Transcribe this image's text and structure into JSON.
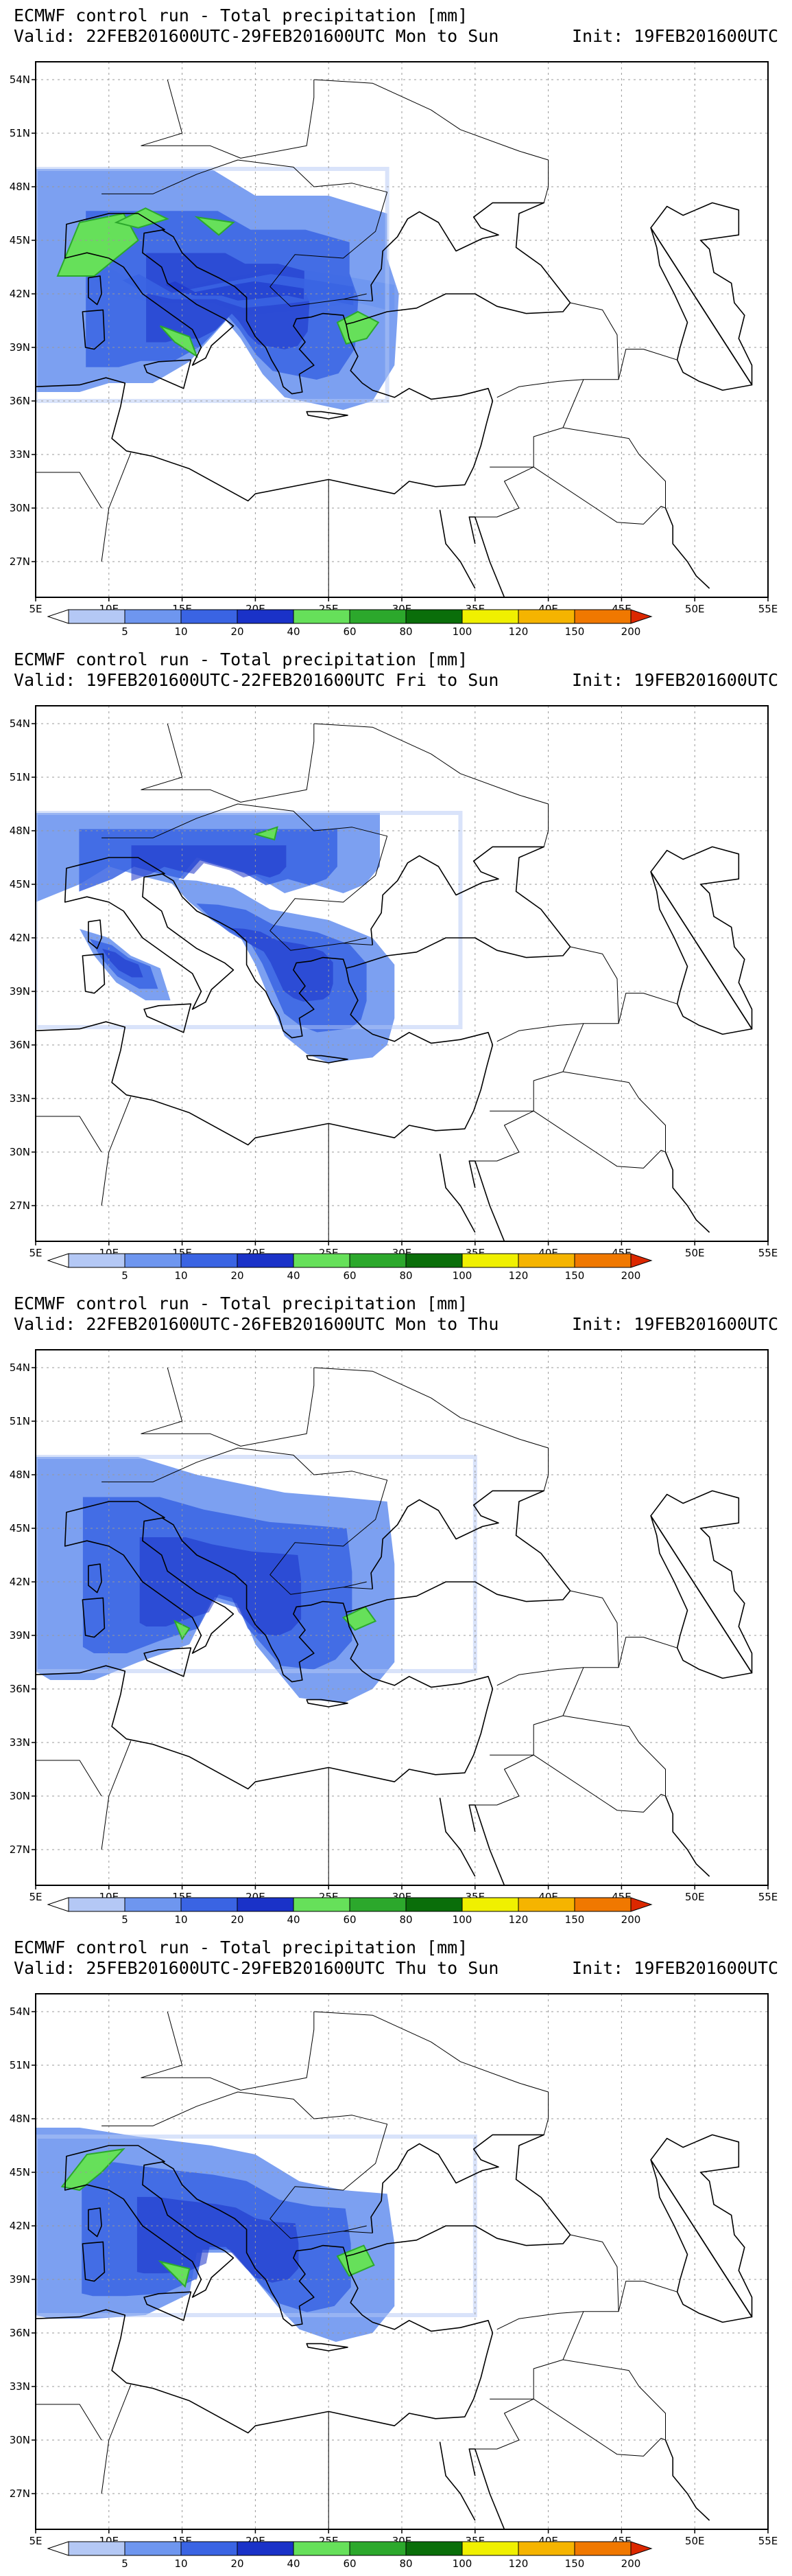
{
  "panels": [
    {
      "title": "ECMWF control run - Total precipitation [mm]",
      "valid": "Valid: 22FEB201600UTC-29FEB201600UTC Mon to Sun",
      "init": "Init: 19FEB201600UTC",
      "variant": "a"
    },
    {
      "title": "ECMWF control run - Total precipitation [mm]",
      "valid": "Valid: 19FEB201600UTC-22FEB201600UTC Fri to Sun",
      "init": "Init: 19FEB201600UTC",
      "variant": "b"
    },
    {
      "title": "ECMWF control run - Total precipitation [mm]",
      "valid": "Valid: 22FEB201600UTC-26FEB201600UTC Mon to Thu",
      "init": "Init: 19FEB201600UTC",
      "variant": "c"
    },
    {
      "title": "ECMWF control run - Total precipitation [mm]",
      "valid": "Valid: 25FEB201600UTC-29FEB201600UTC Thu to Sun",
      "init": "Init: 19FEB201600UTC",
      "variant": "d"
    }
  ],
  "lat_labels": [
    "54N",
    "51N",
    "48N",
    "45N",
    "42N",
    "39N",
    "36N",
    "33N",
    "30N",
    "27N"
  ],
  "lon_labels": [
    "5E",
    "10E",
    "15E",
    "20E",
    "25E",
    "30E",
    "35E",
    "40E",
    "45E",
    "50E",
    "55E"
  ],
  "legend": {
    "labels": [
      "5",
      "10",
      "20",
      "40",
      "60",
      "80",
      "100",
      "120",
      "150",
      "200"
    ],
    "colors": [
      "#b4c8f5",
      "#6e96ef",
      "#3a64e3",
      "#1a32c8",
      "#66e05a",
      "#2ca82c",
      "#0a6e0a",
      "#f0f000",
      "#f5b400",
      "#f07800",
      "#dc2800"
    ]
  }
}
